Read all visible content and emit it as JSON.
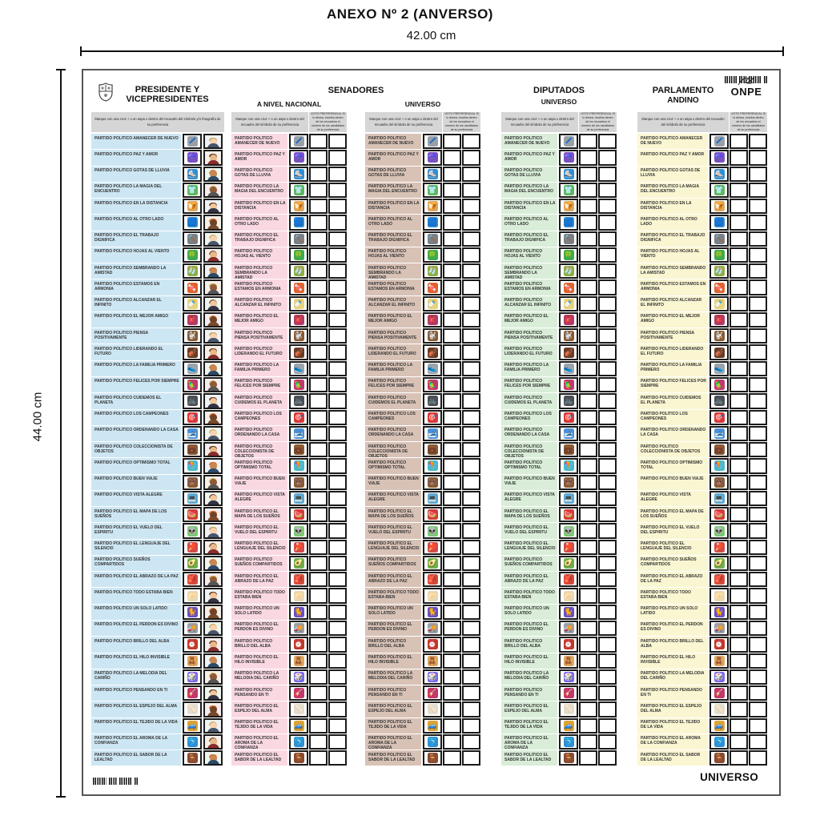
{
  "page": {
    "title": "ANEXO Nº 2 (ANVERSO)",
    "width_label": "42.00  cm",
    "height_label": "44.00  cm",
    "footer_label": "UNIVERSO",
    "onpe_logo": "ONPE"
  },
  "ballot": {
    "group_senadores": "SENADORES",
    "mark_instruction_photo": "Marque con una cruz + o un aspa x dentro del recuadro del símbolo y/o fotografía de su preferencia",
    "mark_instruction": "Marque con una cruz + o un aspa x dentro del recuadro del símbolo de su preferencia",
    "preferential_instruction": "VOTO PREFERENCIAL Si lo desea, escriba dentro de los recuadros el número de los candidatos de su preferencia",
    "columns": [
      {
        "key": "presidente",
        "title_line1": "PRESIDENTE Y",
        "title_line2": "VICEPRESIDENTES",
        "color": "#cde6f3",
        "cells": "photo"
      },
      {
        "key": "senadores-nacional",
        "subtitle": "A NIVEL NACIONAL",
        "color": "#f9d8e2",
        "cells": "pref2"
      },
      {
        "key": "senadores-universo",
        "subtitle": "UNIVERSO",
        "color": "#d8c2b6",
        "cells": "pref2"
      },
      {
        "key": "diputados-universo",
        "title_line1": "DIPUTADOS",
        "subtitle": "UNIVERSO",
        "color": "#d9edd8",
        "cells": "pref2"
      },
      {
        "key": "parlamento-andino",
        "title_line1": "PARLAMENTO",
        "title_line2": "ANDINO",
        "color": "#faf6d2",
        "cells": "pref2"
      }
    ],
    "parties": [
      {
        "name": "PARTIDO POLITICO AMANECER DE NUEVO",
        "icon": "pen",
        "emoji": "🖊️",
        "color": "#9aa0a8"
      },
      {
        "name": "PARTIDO POLITICO PAZ Y AMOR",
        "icon": "umbrella",
        "emoji": "☂️",
        "color": "#7c4fc4"
      },
      {
        "name": "PARTIDO POLITICO GOTAS DE LLUVIA",
        "icon": "ice-skate",
        "emoji": "⛸️",
        "color": "#2f8fd4"
      },
      {
        "name": "PARTIDO POLITICO LA MAGIA DEL ENCUENTRO",
        "icon": "t-shirt",
        "emoji": "👕",
        "color": "#5cb85c"
      },
      {
        "name": "PARTIDO POLITICO EN LA DISTANCIA",
        "icon": "bread",
        "emoji": "🍞",
        "color": "#dda75f"
      },
      {
        "name": "PARTIDO POLITICO AL OTRO LADO",
        "icon": "blue-square",
        "emoji": "🟦",
        "color": "#2f8fd4"
      },
      {
        "name": "PARTIDO POLITICO EL TRABAJO DIGNIFICA",
        "icon": "hammer",
        "emoji": "🔨",
        "color": "#7a8087"
      },
      {
        "name": "PARTIDO POLITICO HOJAS AL VIENTO",
        "icon": "clover",
        "emoji": "🍀",
        "color": "#3faa4f"
      },
      {
        "name": "PARTIDO POLITICO SEMBRANDO LA AMISTAD",
        "icon": "socks",
        "emoji": "🧦",
        "color": "#8fae3f"
      },
      {
        "name": "PARTIDO POLITICO ESTAMOS EN ARMONIA",
        "icon": "candy",
        "emoji": "🍬",
        "color": "#e0622f"
      },
      {
        "name": "PARTIDO POLITICO ALCANZAR EL INFINITO",
        "icon": "baby-bottle",
        "emoji": "🍼",
        "color": "#e8d27a"
      },
      {
        "name": "PARTIDO POLITICO EL MEJOR AMIGO",
        "icon": "scarf",
        "emoji": "🧣",
        "color": "#b23a6e"
      },
      {
        "name": "PARTIDO POLITICO PIENSA POSITIVAMENTE",
        "icon": "poodle",
        "emoji": "🐩",
        "color": "#8a5a32"
      },
      {
        "name": "PARTIDO POLITICO LIDERANDO EL FUTURO",
        "icon": "violin",
        "emoji": "🎻",
        "color": "#6b3b23"
      },
      {
        "name": "PARTIDO POLITICO LA FAMILIA PRIMERO",
        "icon": "sneaker",
        "emoji": "👟",
        "color": "#9aa4ad"
      },
      {
        "name": "PARTIDO POLITICO FELICES POR SIEMPRE",
        "icon": "bird",
        "emoji": "🦜",
        "color": "#c2386e"
      },
      {
        "name": "PARTIDO POLITICO CUIDEMOS EL PLANETA",
        "icon": "bicycle",
        "emoji": "🚲",
        "color": "#4a4f55"
      },
      {
        "name": "PARTIDO POLITICO LOS CAMPEONES",
        "icon": "dart-target",
        "emoji": "🎯",
        "color": "#d43b3b"
      },
      {
        "name": "PARTIDO POLITICO ORDENANDO LA CASA",
        "icon": "skis",
        "emoji": "🎿",
        "color": "#4a90d9"
      },
      {
        "name": "PARTIDO POLITICO COLECCIONISTA DE OBJETOS",
        "icon": "briefcase",
        "emoji": "💼",
        "color": "#8a5a32"
      },
      {
        "name": "PARTIDO POLITICO OPTIMISMO TOTAL",
        "icon": "kite",
        "emoji": "🪁",
        "color": "#49b8c9"
      },
      {
        "name": "PARTIDO POLITICO BUEN VIAJE",
        "icon": "bear",
        "emoji": "🐻",
        "color": "#8a5a32"
      },
      {
        "name": "PARTIDO POLITICO VISTA ALEGRE",
        "icon": "laptop",
        "emoji": "💻",
        "color": "#57a8d4"
      },
      {
        "name": "PARTIDO POLITICO EL MAPA DE LOS SUEÑOS",
        "icon": "watermelon",
        "emoji": "🍉",
        "color": "#d43b3b"
      },
      {
        "name": "PARTIDO POLITICO EL VUELO DEL ESPIRITU",
        "icon": "alien",
        "emoji": "👽",
        "color": "#7bc96f"
      },
      {
        "name": "PARTIDO POLITICO EL LENGUAJE DEL SILENCIO",
        "icon": "ping-pong-paddle",
        "emoji": "🏓",
        "color": "#d44a4a"
      },
      {
        "name": "PARTIDO POLITICO SUEÑOS COMPARTIDOS",
        "icon": "avocado",
        "emoji": "🥑",
        "color": "#6fae4f"
      },
      {
        "name": "PARTIDO POLITICO EL ABRAZO DE LA PAZ",
        "icon": "backpack",
        "emoji": "🎒",
        "color": "#d44a3b"
      },
      {
        "name": "PARTIDO POLITICO TODO ESTABA BIEN",
        "icon": "dumpling",
        "emoji": "🥟",
        "color": "#e8d7b0"
      },
      {
        "name": "PARTIDO POLITICO UN SOLO LATIDO",
        "icon": "cat",
        "emoji": "🐈",
        "color": "#6b4fc4"
      },
      {
        "name": "PARTIDO POLITICO EL PERDON ES DIVINO",
        "icon": "delivery-truck",
        "emoji": "🚚",
        "color": "#9aa0a8"
      },
      {
        "name": "PARTIDO POLITICO BRILLO DEL ALBA",
        "icon": "alarm-clock",
        "emoji": "⏰",
        "color": "#c0392b"
      },
      {
        "name": "PARTIDO POLITICO EL HILO INVISIBLE",
        "icon": "teddy-bear",
        "emoji": "🧸",
        "color": "#dda75f"
      },
      {
        "name": "PARTIDO POLITICO LA MELODIA DEL CARIÑO",
        "icon": "game-die",
        "emoji": "🎲",
        "color": "#7b68ee"
      },
      {
        "name": "PARTIDO POLITICO PENSANDO EN TI",
        "icon": "guitar",
        "emoji": "🎸",
        "color": "#c2386e"
      },
      {
        "name": "PARTIDO POLITICO EL ESPEJO DEL ALMA",
        "icon": "bone",
        "emoji": "🦴",
        "color": "#e3ddcc"
      },
      {
        "name": "PARTIDO POLITICO EL TEJIDO DE LA VIDA",
        "icon": "car",
        "emoji": "🚙",
        "color": "#e0a22f"
      },
      {
        "name": "PARTIDO POLITICO EL AROMA DE LA CONFIANZA",
        "icon": "dolphin",
        "emoji": "🐬",
        "color": "#2f8fd4"
      },
      {
        "name": "PARTIDO POLITICO EL SABOR DE LA LEALTAD",
        "icon": "chair",
        "emoji": "🪑",
        "color": "#8a4a2f"
      }
    ]
  }
}
